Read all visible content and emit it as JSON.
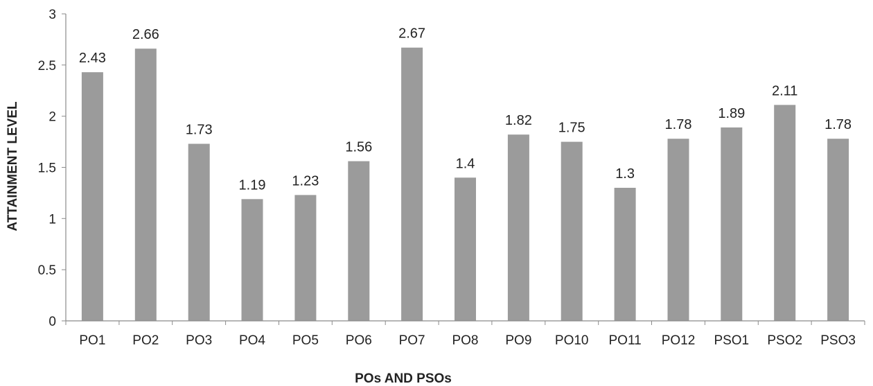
{
  "chart_data": {
    "type": "bar",
    "xlabel": "POs AND PSOs",
    "ylabel": "ATTAINMENT LEVEL",
    "ylim": [
      0,
      3
    ],
    "yticks": [
      "0",
      "0.5",
      "1",
      "1.5",
      "2",
      "2.5",
      "3"
    ],
    "categories": [
      "PO1",
      "PO2",
      "PO3",
      "PO4",
      "PO5",
      "PO6",
      "PO7",
      "PO8",
      "PO9",
      "PO10",
      "PO11",
      "PO12",
      "PSO1",
      "PSO2",
      "PSO3"
    ],
    "values": [
      2.43,
      2.66,
      1.73,
      1.19,
      1.23,
      1.56,
      2.67,
      1.4,
      1.82,
      1.75,
      1.3,
      1.78,
      1.89,
      2.11,
      1.78
    ],
    "value_labels": [
      "2.43",
      "2.66",
      "1.73",
      "1.19",
      "1.23",
      "1.56",
      "2.67",
      "1.4",
      "1.82",
      "1.75",
      "1.3",
      "1.78",
      "1.89",
      "2.11",
      "1.78"
    ],
    "grid": false,
    "bar_color": "#9b9b9b",
    "axis_color": "#8a8a8a"
  }
}
